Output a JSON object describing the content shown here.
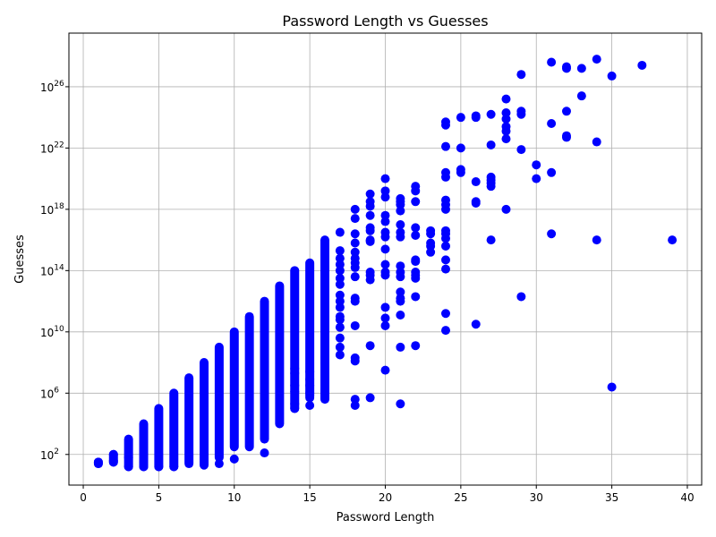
{
  "chart_data": {
    "type": "scatter",
    "title": "Password Length vs Guesses",
    "xlabel": "Password Length",
    "ylabel": "Guesses",
    "xlim": [
      -0.95,
      40.95
    ],
    "ylim_log10": [
      0.0,
      29.5
    ],
    "yscale": "log",
    "grid": true,
    "marker_color": "#0000ff",
    "x_ticks": [
      0,
      5,
      10,
      15,
      20,
      25,
      30,
      35,
      40
    ],
    "x_tick_labels": [
      "0",
      "5",
      "10",
      "15",
      "20",
      "25",
      "30",
      "35",
      "40"
    ],
    "y_ticks_log10": [
      2,
      6,
      10,
      14,
      18,
      22,
      26
    ],
    "y_tick_base": "10",
    "y_tick_exponents": [
      "2",
      "6",
      "10",
      "14",
      "18",
      "22",
      "26"
    ],
    "columns": [
      {
        "x": 1,
        "lo": 1.4,
        "hi": 1.5
      },
      {
        "x": 2,
        "lo": 1.5,
        "hi": 2.0
      },
      {
        "x": 3,
        "lo": 1.2,
        "hi": 3.0
      },
      {
        "x": 4,
        "lo": 1.2,
        "hi": 4.0
      },
      {
        "x": 5,
        "lo": 1.2,
        "hi": 5.0
      },
      {
        "x": 6,
        "lo": 1.2,
        "hi": 6.0
      },
      {
        "x": 7,
        "lo": 1.4,
        "hi": 7.0
      },
      {
        "x": 8,
        "lo": 1.3,
        "hi": 8.0
      },
      {
        "x": 9,
        "lo": 1.8,
        "hi": 9.0
      },
      {
        "x": 10,
        "lo": 2.5,
        "hi": 10.0
      },
      {
        "x": 11,
        "lo": 2.5,
        "hi": 11.0
      },
      {
        "x": 12,
        "lo": 3.0,
        "hi": 12.0
      },
      {
        "x": 13,
        "lo": 4.0,
        "hi": 13.0
      },
      {
        "x": 14,
        "lo": 5.0,
        "hi": 14.0
      },
      {
        "x": 15,
        "lo": 5.8,
        "hi": 14.5
      },
      {
        "x": 16,
        "lo": 5.6,
        "hi": 16.0
      }
    ],
    "points": [
      {
        "x": 1,
        "y": 1.4
      },
      {
        "x": 1,
        "y": 1.5
      },
      {
        "x": 2,
        "y": 1.5
      },
      {
        "x": 2,
        "y": 1.6
      },
      {
        "x": 2,
        "y": 2.0
      },
      {
        "x": 3,
        "y": 1.2
      },
      {
        "x": 3,
        "y": 1.8
      },
      {
        "x": 4,
        "y": 1.2
      },
      {
        "x": 4,
        "y": 1.5
      },
      {
        "x": 5,
        "y": 1.2
      },
      {
        "x": 6,
        "y": 1.2
      },
      {
        "x": 9,
        "y": 1.4
      },
      {
        "x": 10,
        "y": 1.7
      },
      {
        "x": 12,
        "y": 2.1
      },
      {
        "x": 14,
        "y": 5.0
      },
      {
        "x": 14,
        "y": 5.3
      },
      {
        "x": 14,
        "y": 6.1
      },
      {
        "x": 14,
        "y": 6.5
      },
      {
        "x": 14,
        "y": 7.3
      },
      {
        "x": 14,
        "y": 7.6
      },
      {
        "x": 15,
        "y": 5.2
      },
      {
        "x": 15,
        "y": 5.7
      },
      {
        "x": 15,
        "y": 6.0
      },
      {
        "x": 15,
        "y": 6.5
      },
      {
        "x": 15,
        "y": 6.9
      },
      {
        "x": 15,
        "y": 7.4
      },
      {
        "x": 16,
        "y": 5.7
      },
      {
        "x": 16,
        "y": 6.0
      },
      {
        "x": 16,
        "y": 6.2
      },
      {
        "x": 16,
        "y": 8.0
      },
      {
        "x": 16,
        "y": 8.3
      },
      {
        "x": 17,
        "y": 8.5
      },
      {
        "x": 17,
        "y": 9.0
      },
      {
        "x": 17,
        "y": 9.6
      },
      {
        "x": 17,
        "y": 10.3
      },
      {
        "x": 17,
        "y": 10.8
      },
      {
        "x": 17,
        "y": 11.0
      },
      {
        "x": 17,
        "y": 11.6
      },
      {
        "x": 17,
        "y": 12.0
      },
      {
        "x": 17,
        "y": 12.4
      },
      {
        "x": 17,
        "y": 13.1
      },
      {
        "x": 17,
        "y": 13.5
      },
      {
        "x": 17,
        "y": 14.0
      },
      {
        "x": 17,
        "y": 14.4
      },
      {
        "x": 17,
        "y": 14.8
      },
      {
        "x": 17,
        "y": 15.3
      },
      {
        "x": 17,
        "y": 16.5
      },
      {
        "x": 18,
        "y": 5.2
      },
      {
        "x": 18,
        "y": 5.6
      },
      {
        "x": 18,
        "y": 8.1
      },
      {
        "x": 18,
        "y": 8.3
      },
      {
        "x": 18,
        "y": 10.4
      },
      {
        "x": 18,
        "y": 12.0
      },
      {
        "x": 18,
        "y": 12.2
      },
      {
        "x": 18,
        "y": 13.6
      },
      {
        "x": 18,
        "y": 14.2
      },
      {
        "x": 18,
        "y": 14.5
      },
      {
        "x": 18,
        "y": 14.8
      },
      {
        "x": 18,
        "y": 15.2
      },
      {
        "x": 18,
        "y": 15.8
      },
      {
        "x": 18,
        "y": 16.4
      },
      {
        "x": 18,
        "y": 17.4
      },
      {
        "x": 18,
        "y": 18.0
      },
      {
        "x": 19,
        "y": 5.7
      },
      {
        "x": 19,
        "y": 9.1
      },
      {
        "x": 19,
        "y": 13.4
      },
      {
        "x": 19,
        "y": 13.7
      },
      {
        "x": 19,
        "y": 13.9
      },
      {
        "x": 19,
        "y": 15.9
      },
      {
        "x": 19,
        "y": 16.0
      },
      {
        "x": 19,
        "y": 16.6
      },
      {
        "x": 19,
        "y": 16.8
      },
      {
        "x": 19,
        "y": 17.6
      },
      {
        "x": 19,
        "y": 18.2
      },
      {
        "x": 19,
        "y": 18.5
      },
      {
        "x": 19,
        "y": 19.0
      },
      {
        "x": 20,
        "y": 7.5
      },
      {
        "x": 20,
        "y": 10.4
      },
      {
        "x": 20,
        "y": 10.9
      },
      {
        "x": 20,
        "y": 11.6
      },
      {
        "x": 20,
        "y": 13.7
      },
      {
        "x": 20,
        "y": 13.9
      },
      {
        "x": 20,
        "y": 14.4
      },
      {
        "x": 20,
        "y": 15.4
      },
      {
        "x": 20,
        "y": 16.2
      },
      {
        "x": 20,
        "y": 16.5
      },
      {
        "x": 20,
        "y": 17.2
      },
      {
        "x": 20,
        "y": 17.6
      },
      {
        "x": 20,
        "y": 18.8
      },
      {
        "x": 20,
        "y": 19.2
      },
      {
        "x": 20,
        "y": 20.0
      },
      {
        "x": 21,
        "y": 5.3
      },
      {
        "x": 21,
        "y": 9.0
      },
      {
        "x": 21,
        "y": 11.1
      },
      {
        "x": 21,
        "y": 12.0
      },
      {
        "x": 21,
        "y": 12.2
      },
      {
        "x": 21,
        "y": 12.6
      },
      {
        "x": 21,
        "y": 13.6
      },
      {
        "x": 21,
        "y": 13.9
      },
      {
        "x": 21,
        "y": 14.3
      },
      {
        "x": 21,
        "y": 16.2
      },
      {
        "x": 21,
        "y": 16.5
      },
      {
        "x": 21,
        "y": 17.0
      },
      {
        "x": 21,
        "y": 17.9
      },
      {
        "x": 21,
        "y": 18.3
      },
      {
        "x": 21,
        "y": 18.5
      },
      {
        "x": 21,
        "y": 18.7
      },
      {
        "x": 22,
        "y": 9.1
      },
      {
        "x": 22,
        "y": 12.3
      },
      {
        "x": 22,
        "y": 13.5
      },
      {
        "x": 22,
        "y": 13.7
      },
      {
        "x": 22,
        "y": 13.9
      },
      {
        "x": 22,
        "y": 14.6
      },
      {
        "x": 22,
        "y": 14.7
      },
      {
        "x": 22,
        "y": 16.3
      },
      {
        "x": 22,
        "y": 16.8
      },
      {
        "x": 22,
        "y": 18.5
      },
      {
        "x": 22,
        "y": 19.2
      },
      {
        "x": 22,
        "y": 19.5
      },
      {
        "x": 23,
        "y": 15.2
      },
      {
        "x": 23,
        "y": 15.6
      },
      {
        "x": 23,
        "y": 15.8
      },
      {
        "x": 23,
        "y": 16.4
      },
      {
        "x": 23,
        "y": 16.6
      },
      {
        "x": 24,
        "y": 10.1
      },
      {
        "x": 24,
        "y": 11.2
      },
      {
        "x": 24,
        "y": 14.1
      },
      {
        "x": 24,
        "y": 14.7
      },
      {
        "x": 24,
        "y": 15.6
      },
      {
        "x": 24,
        "y": 16.1
      },
      {
        "x": 24,
        "y": 16.4
      },
      {
        "x": 24,
        "y": 16.6
      },
      {
        "x": 24,
        "y": 18.0
      },
      {
        "x": 24,
        "y": 18.3
      },
      {
        "x": 24,
        "y": 18.6
      },
      {
        "x": 24,
        "y": 20.1
      },
      {
        "x": 24,
        "y": 20.4
      },
      {
        "x": 24,
        "y": 22.1
      },
      {
        "x": 24,
        "y": 23.5
      },
      {
        "x": 24,
        "y": 23.7
      },
      {
        "x": 25,
        "y": 20.4
      },
      {
        "x": 25,
        "y": 20.6
      },
      {
        "x": 25,
        "y": 22.0
      },
      {
        "x": 25,
        "y": 24.0
      },
      {
        "x": 26,
        "y": 10.5
      },
      {
        "x": 26,
        "y": 18.4
      },
      {
        "x": 26,
        "y": 18.5
      },
      {
        "x": 26,
        "y": 19.8
      },
      {
        "x": 26,
        "y": 24.0
      },
      {
        "x": 26,
        "y": 24.1
      },
      {
        "x": 27,
        "y": 16.0
      },
      {
        "x": 27,
        "y": 19.5
      },
      {
        "x": 27,
        "y": 19.7
      },
      {
        "x": 27,
        "y": 19.9
      },
      {
        "x": 27,
        "y": 20.1
      },
      {
        "x": 27,
        "y": 22.2
      },
      {
        "x": 27,
        "y": 24.2
      },
      {
        "x": 28,
        "y": 18.0
      },
      {
        "x": 28,
        "y": 22.6
      },
      {
        "x": 28,
        "y": 23.1
      },
      {
        "x": 28,
        "y": 23.4
      },
      {
        "x": 28,
        "y": 23.9
      },
      {
        "x": 28,
        "y": 24.3
      },
      {
        "x": 28,
        "y": 25.2
      },
      {
        "x": 29,
        "y": 12.3
      },
      {
        "x": 29,
        "y": 21.9
      },
      {
        "x": 29,
        "y": 24.2
      },
      {
        "x": 29,
        "y": 24.4
      },
      {
        "x": 29,
        "y": 26.8
      },
      {
        "x": 30,
        "y": 20.0
      },
      {
        "x": 30,
        "y": 20.9
      },
      {
        "x": 31,
        "y": 16.4
      },
      {
        "x": 31,
        "y": 20.4
      },
      {
        "x": 31,
        "y": 23.6
      },
      {
        "x": 31,
        "y": 27.6
      },
      {
        "x": 32,
        "y": 22.7
      },
      {
        "x": 32,
        "y": 22.8
      },
      {
        "x": 32,
        "y": 24.4
      },
      {
        "x": 32,
        "y": 27.2
      },
      {
        "x": 32,
        "y": 27.3
      },
      {
        "x": 33,
        "y": 25.4
      },
      {
        "x": 33,
        "y": 27.2
      },
      {
        "x": 34,
        "y": 16.0
      },
      {
        "x": 34,
        "y": 22.4
      },
      {
        "x": 34,
        "y": 27.8
      },
      {
        "x": 35,
        "y": 6.4
      },
      {
        "x": 35,
        "y": 26.7
      },
      {
        "x": 37,
        "y": 27.4
      },
      {
        "x": 39,
        "y": 16.0
      }
    ]
  }
}
